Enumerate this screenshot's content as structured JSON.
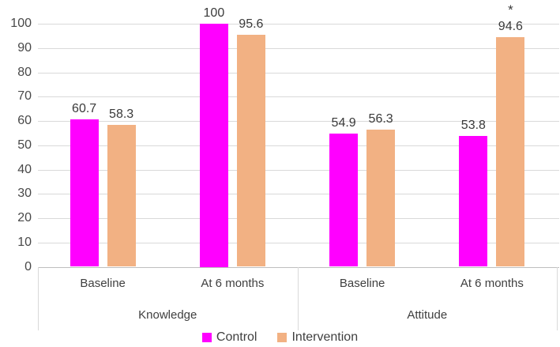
{
  "chart_data": {
    "type": "bar",
    "title": "",
    "groups": [
      {
        "label": "Knowledge",
        "categories": [
          "Baseline",
          "At 6 months"
        ]
      },
      {
        "label": "Attitude",
        "categories": [
          "Baseline",
          "At 6 months"
        ]
      }
    ],
    "series": [
      {
        "name": "Control",
        "color": "#ff00ff",
        "values": [
          60.7,
          100,
          54.9,
          53.8
        ],
        "labels": [
          "60.7",
          "100",
          "54.9",
          "53.8"
        ]
      },
      {
        "name": "Intervention",
        "color": "#f2b183",
        "values": [
          58.3,
          95.6,
          56.3,
          94.6
        ],
        "labels": [
          "58.3",
          "95.6",
          "56.3",
          "94.6"
        ]
      }
    ],
    "annotation": {
      "text": "*",
      "series_index": 1,
      "value_index": 3
    },
    "y_axis": {
      "min": 0,
      "max": 100,
      "step": 10,
      "ticks": [
        "0",
        "10",
        "20",
        "30",
        "40",
        "50",
        "60",
        "70",
        "80",
        "90",
        "100"
      ]
    },
    "grid": true,
    "data_labels": true,
    "legend_position": "bottom"
  },
  "colors": {
    "control": "#ff00ff",
    "intervention": "#f2b183",
    "gridline": "#d9d9d9",
    "axis_line": "#bfbfbf",
    "text": "#3f3f3f"
  }
}
